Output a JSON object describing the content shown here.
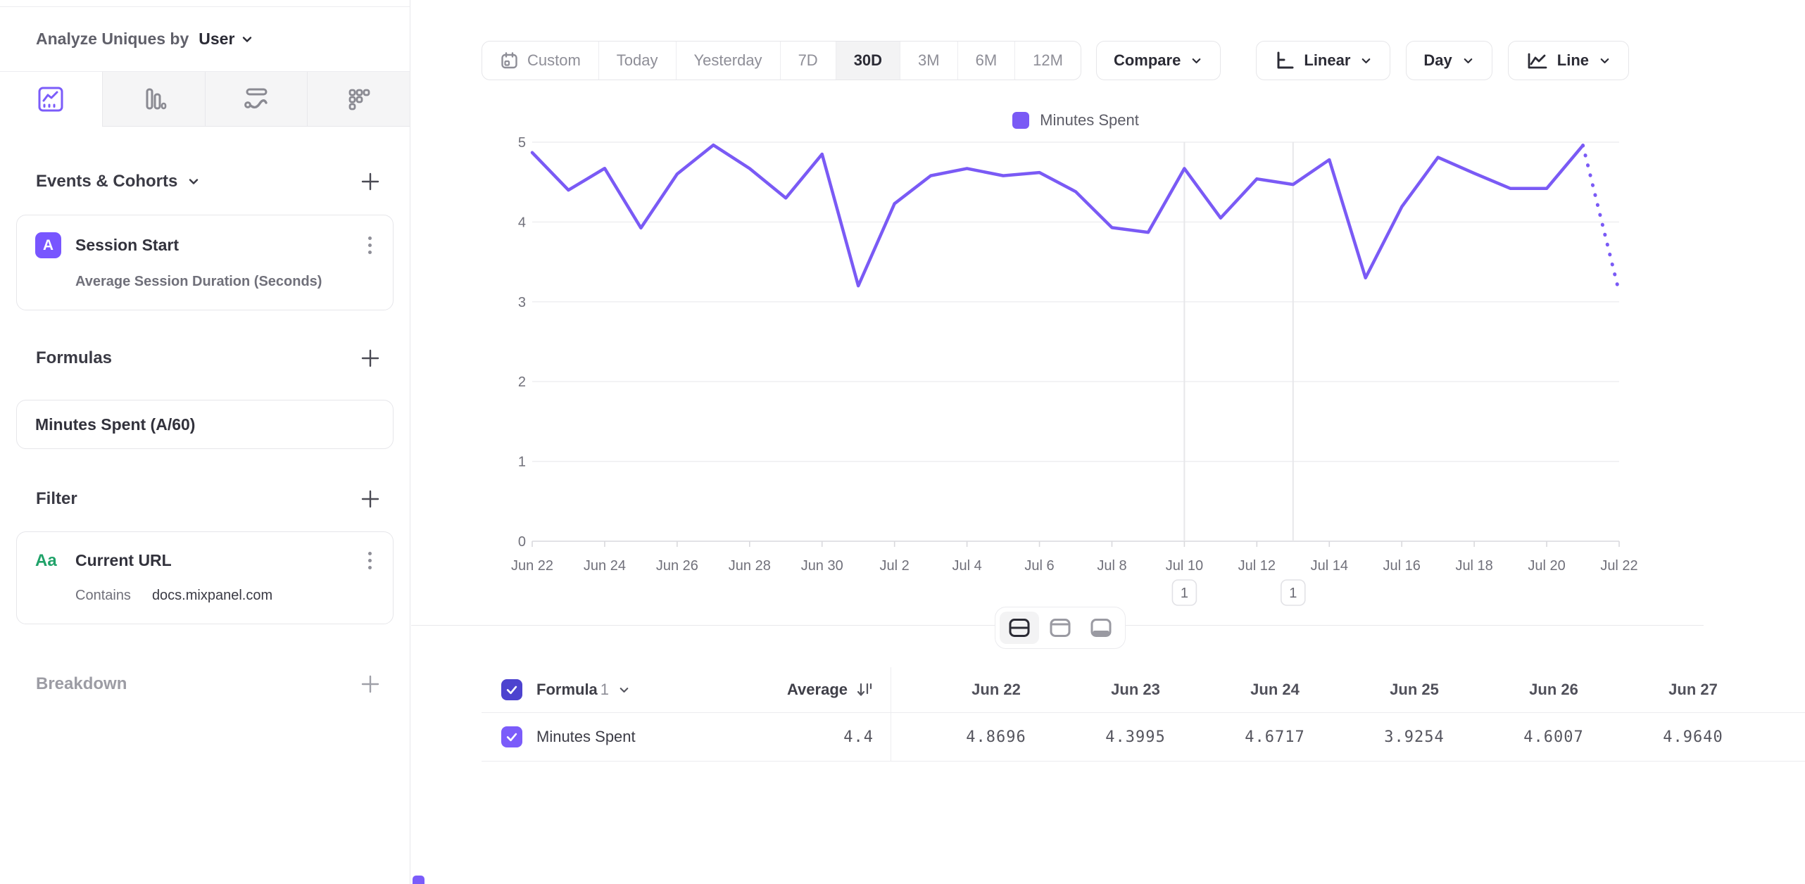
{
  "sidebar": {
    "analyze_label": "Analyze Uniques by",
    "analyze_value": "User",
    "tabs": [
      {
        "icon": "line-chart-icon",
        "active": true
      },
      {
        "icon": "bar-chart-icon",
        "active": false
      },
      {
        "icon": "flow-chart-icon",
        "active": false
      },
      {
        "icon": "retention-grid-icon",
        "active": false
      }
    ],
    "events_section": {
      "title": "Events & Cohorts"
    },
    "event_card": {
      "badge": "A",
      "title": "Session Start",
      "subtitle": "Average Session Duration (Seconds)"
    },
    "formulas_section": {
      "title": "Formulas"
    },
    "formula_card": {
      "title": "Minutes Spent (A/60)"
    },
    "filter_section": {
      "title": "Filter"
    },
    "filter_card": {
      "icon_text": "Aa",
      "title": "Current URL",
      "operator": "Contains",
      "value": "docs.mixpanel.com"
    },
    "breakdown_section": {
      "title": "Breakdown"
    }
  },
  "toolbar": {
    "date_ranges": [
      "Custom",
      "Today",
      "Yesterday",
      "7D",
      "30D",
      "3M",
      "6M",
      "12M"
    ],
    "active_range": "30D",
    "compare_label": "Compare",
    "scale_label": "Linear",
    "granularity_label": "Day",
    "chart_type_label": "Line"
  },
  "colors": {
    "accent_purple": "#7b5cfa",
    "line_purple": "#7a5af5",
    "badge_purple": "#7856ff",
    "checkbox_dark": "#4d43cf",
    "checkbox_light": "#7b5cfa",
    "filter_green": "#1fa269"
  },
  "chart_data": {
    "type": "line",
    "title": "",
    "xlabel": "",
    "ylabel": "",
    "ylim": [
      0,
      5
    ],
    "yticks": [
      0,
      1,
      2,
      3,
      4,
      5
    ],
    "grid": true,
    "legend_position": "top-center",
    "x": [
      "Jun 22",
      "Jun 23",
      "Jun 24",
      "Jun 25",
      "Jun 26",
      "Jun 27",
      "Jun 28",
      "Jun 29",
      "Jun 30",
      "Jul 1",
      "Jul 2",
      "Jul 3",
      "Jul 4",
      "Jul 5",
      "Jul 6",
      "Jul 7",
      "Jul 8",
      "Jul 9",
      "Jul 10",
      "Jul 11",
      "Jul 12",
      "Jul 13",
      "Jul 14",
      "Jul 15",
      "Jul 16",
      "Jul 17",
      "Jul 18",
      "Jul 19",
      "Jul 20",
      "Jul 21",
      "Jul 22"
    ],
    "x_tick_step": 2,
    "series": [
      {
        "name": "Minutes Spent",
        "color": "#7a5af5",
        "dotted_tail_points": 1,
        "values": [
          4.8696,
          4.3995,
          4.6717,
          3.9254,
          4.6007,
          4.964,
          4.67,
          4.3,
          4.85,
          3.2,
          4.23,
          4.58,
          4.67,
          4.58,
          4.62,
          4.38,
          3.93,
          3.87,
          4.67,
          4.05,
          4.54,
          4.47,
          4.78,
          3.3,
          4.19,
          4.81,
          4.61,
          4.42,
          4.42,
          4.96,
          3.12
        ]
      }
    ],
    "annotations": [
      {
        "label": "1",
        "x_index": 18
      },
      {
        "label": "1",
        "x_index": 21
      }
    ]
  },
  "layout_toggle": {
    "buttons": [
      {
        "icon": "split-horizontal-icon",
        "active": true
      },
      {
        "icon": "panel-top-icon",
        "active": false
      },
      {
        "icon": "panel-bottom-icon",
        "active": false
      }
    ]
  },
  "table": {
    "formula_label": "Formula",
    "formula_index": "1",
    "average_label": "Average",
    "columns": [
      "Jun 22",
      "Jun 23",
      "Jun 24",
      "Jun 25",
      "Jun 26",
      "Jun 27"
    ],
    "row": {
      "label": "Minutes Spent",
      "average": "4.4",
      "values": [
        "4.8696",
        "4.3995",
        "4.6717",
        "3.9254",
        "4.6007",
        "4.9640"
      ]
    }
  }
}
